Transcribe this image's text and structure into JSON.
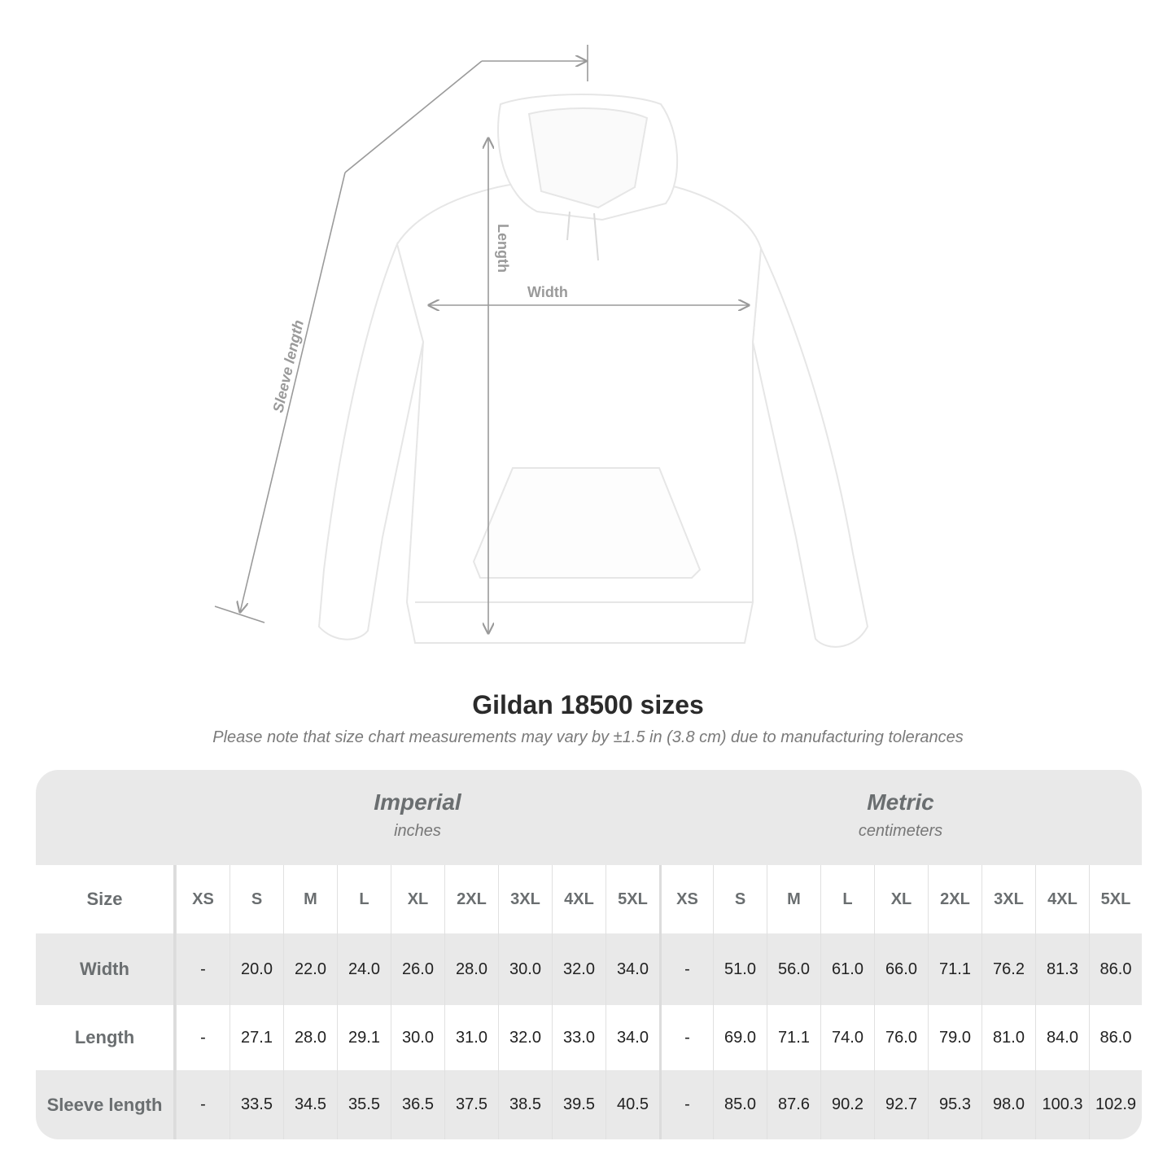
{
  "diagram": {
    "labels": {
      "length": "Length",
      "width": "Width",
      "sleeve": "Sleeve length"
    },
    "line_color": "#9a9a9a"
  },
  "title": "Gildan 18500 sizes",
  "subtitle": "Please note that size chart measurements may vary by ±1.5 in (3.8 cm) due to manufacturing tolerances",
  "table": {
    "imperial": {
      "name": "Imperial",
      "unit": "inches"
    },
    "metric": {
      "name": "Metric",
      "unit": "centimeters"
    },
    "size_label": "Size",
    "sizes": [
      "XS",
      "S",
      "M",
      "L",
      "XL",
      "2XL",
      "3XL",
      "4XL",
      "5XL"
    ],
    "rows": [
      {
        "label": "Width",
        "imperial": [
          "-",
          "20.0",
          "22.0",
          "24.0",
          "26.0",
          "28.0",
          "30.0",
          "32.0",
          "34.0"
        ],
        "metric": [
          "-",
          "51.0",
          "56.0",
          "61.0",
          "66.0",
          "71.1",
          "76.2",
          "81.3",
          "86.0"
        ]
      },
      {
        "label": "Length",
        "imperial": [
          "-",
          "27.1",
          "28.0",
          "29.1",
          "30.0",
          "31.0",
          "32.0",
          "33.0",
          "34.0"
        ],
        "metric": [
          "-",
          "69.0",
          "71.1",
          "74.0",
          "76.0",
          "79.0",
          "81.0",
          "84.0",
          "86.0"
        ]
      },
      {
        "label": "Sleeve length",
        "imperial": [
          "-",
          "33.5",
          "34.5",
          "35.5",
          "36.5",
          "37.5",
          "38.5",
          "39.5",
          "40.5"
        ],
        "metric": [
          "-",
          "85.0",
          "87.6",
          "90.2",
          "92.7",
          "95.3",
          "98.0",
          "100.3",
          "102.9"
        ]
      }
    ]
  }
}
